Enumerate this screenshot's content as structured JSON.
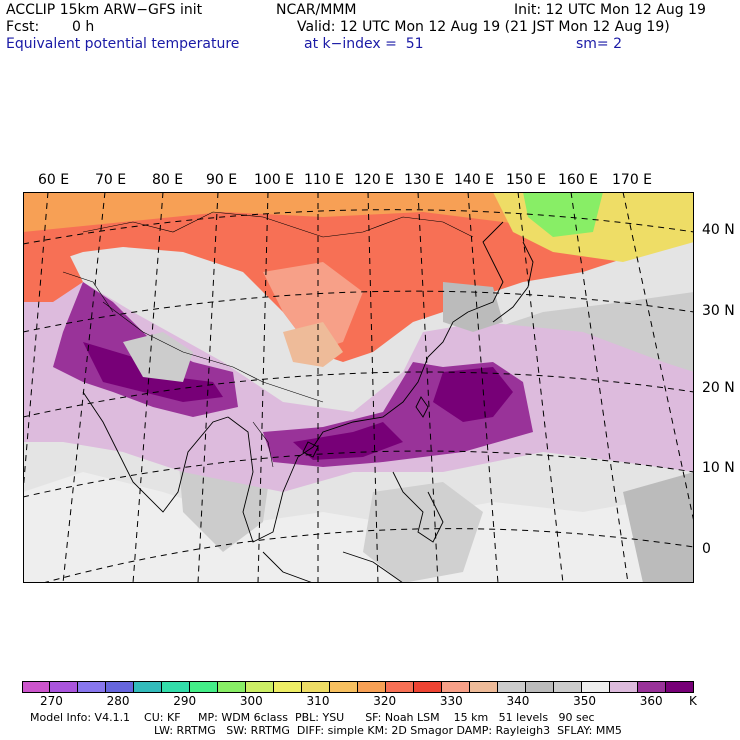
{
  "header": {
    "model": "ACCLIP 15km ARW−GFS init",
    "org": "NCAR/MMM",
    "init": "Init: 12 UTC Mon 12 Aug 19",
    "fcst_label": "Fcst:",
    "fcst_value": "0 h",
    "valid": "Valid: 12 UTC Mon 12 Aug 19 (21 JST Mon 12 Aug 19)",
    "field": "Equivalent potential temperature",
    "level": "at k−index =  51",
    "smooth": "sm= 2"
  },
  "map": {
    "lon_labels": [
      "60 E",
      "70 E",
      "80 E",
      "90 E",
      "100 E",
      "110 E",
      "120 E",
      "130 E",
      "140 E",
      "150 E",
      "160 E",
      "170 E"
    ],
    "lat_labels": [
      "40 N",
      "30 N",
      "20 N",
      "10 N",
      "0"
    ]
  },
  "colorbar": {
    "unit": "K",
    "colors": [
      "#cc55cc",
      "#aa55dd",
      "#8877ee",
      "#6666dd",
      "#33bbbb",
      "#33ddaa",
      "#44ee88",
      "#88ee66",
      "#ccee66",
      "#eeee66",
      "#eedd66",
      "#f7c060",
      "#f7a055",
      "#f77055",
      "#ee4433",
      "#f7a088",
      "#eebb99",
      "#cccccc",
      "#bbbbbb",
      "#cccccc",
      "#eeeeee",
      "#ddbbdd",
      "#993399",
      "#770077"
    ],
    "tick_labels": [
      "270",
      "280",
      "290",
      "300",
      "310",
      "320",
      "330",
      "340",
      "350",
      "360"
    ]
  },
  "footer": {
    "line1": "Model Info: V4.1.1    CU: KF     MP: WDM 6class  PBL: YSU      SF: Noah LSM    15 km   51 levels   90 sec",
    "line2": "LW: RRTMG   SW: RRTMG  DIFF: simple KM: 2D Smagor DAMP: Rayleigh3  SFLAY: MM5"
  }
}
